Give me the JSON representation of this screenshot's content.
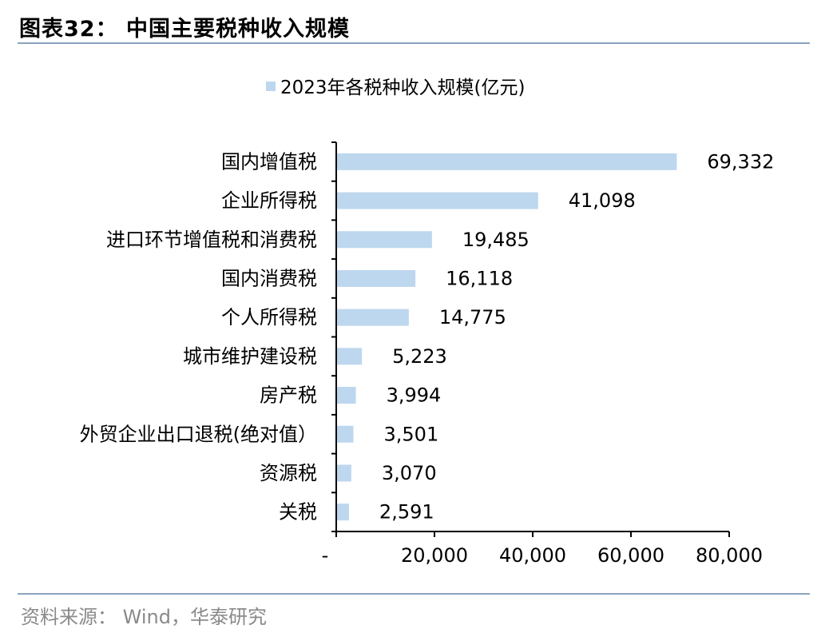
{
  "figure": {
    "title": "图表32：  中国主要税种收入规模",
    "source": "资料来源：  Wind，华泰研究"
  },
  "colors": {
    "bar": "#bdd7ee",
    "axis": "#000000",
    "rule": "#8aa3bf"
  },
  "chart_data": {
    "type": "bar",
    "orientation": "horizontal",
    "title": "",
    "xlabel": "",
    "ylabel": "",
    "categories": [
      "国内增值税",
      "企业所得税",
      "进口环节增值税和消费税",
      "国内消费税",
      "个人所得税",
      "城市维护建设税",
      "房产税",
      "外贸企业出口退税(绝对值）",
      "资源税",
      "关税"
    ],
    "series": [
      {
        "name": "2023年各税种收入规模(亿元)",
        "values": [
          69332,
          41098,
          19485,
          16118,
          14775,
          5223,
          3994,
          3501,
          3070,
          2591
        ],
        "value_labels": [
          "69,332",
          "41,098",
          "19,485",
          "16,118",
          "14,775",
          "5,223",
          "3,994",
          "3,501",
          "3,070",
          "2,591"
        ]
      }
    ],
    "xlim": [
      0,
      80000
    ],
    "xticks": [
      0,
      20000,
      40000,
      60000,
      80000
    ],
    "xtick_labels": [
      "-",
      "20,000",
      "40,000",
      "60,000",
      "80,000"
    ],
    "legend": "top-center",
    "grid": false
  }
}
